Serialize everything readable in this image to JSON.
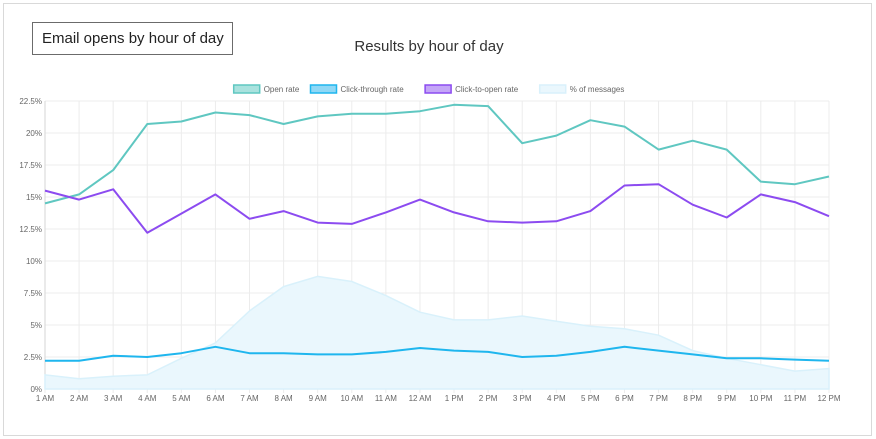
{
  "label_box": "Email opens by hour of day",
  "chart_data": {
    "type": "line",
    "title": "Results by hour of day",
    "xlabel": "",
    "ylabel": "",
    "ylim": [
      0,
      22.5
    ],
    "yticks": [
      "0%",
      "2.5%",
      "5%",
      "7.5%",
      "10%",
      "12.5%",
      "15%",
      "17.5%",
      "20%",
      "22.5%"
    ],
    "grid": true,
    "legend": "top-center",
    "categories": [
      "1 AM",
      "2 AM",
      "3 AM",
      "4 AM",
      "5 AM",
      "6 AM",
      "7 AM",
      "8 AM",
      "9 AM",
      "10 AM",
      "11 AM",
      "12 AM",
      "1 PM",
      "2 PM",
      "3 PM",
      "4 PM",
      "5 PM",
      "6 PM",
      "7 PM",
      "8 PM",
      "9 PM",
      "10 PM",
      "11 PM",
      "12 PM"
    ],
    "series": [
      {
        "name": "Open rate",
        "color": "#5fc7c1",
        "fill": "#a9e2de",
        "type": "line",
        "values": [
          14.5,
          15.2,
          17.1,
          20.7,
          20.9,
          21.6,
          21.4,
          20.7,
          21.3,
          21.5,
          21.5,
          21.7,
          22.2,
          22.1,
          19.2,
          19.8,
          21.0,
          20.5,
          18.7,
          19.4,
          18.7,
          16.2,
          16.0,
          16.6
        ]
      },
      {
        "name": "Click-through rate",
        "color": "#1fb6ee",
        "fill": "#8fd8f6",
        "type": "line",
        "values": [
          2.2,
          2.2,
          2.6,
          2.5,
          2.8,
          3.3,
          2.8,
          2.8,
          2.7,
          2.7,
          2.9,
          3.2,
          3.0,
          2.9,
          2.5,
          2.6,
          2.9,
          3.3,
          3.0,
          2.7,
          2.4,
          2.4,
          2.3,
          2.2
        ]
      },
      {
        "name": "Click-to-open rate",
        "color": "#8c4bf0",
        "fill": "#c4a6f7",
        "type": "line",
        "values": [
          15.5,
          14.8,
          15.6,
          12.2,
          13.7,
          15.2,
          13.3,
          13.9,
          13.0,
          12.9,
          13.8,
          14.8,
          13.8,
          13.1,
          13.0,
          13.1,
          13.9,
          15.9,
          16.0,
          14.4,
          13.4,
          15.2,
          14.6,
          13.5
        ]
      },
      {
        "name": "% of messages",
        "color": "#d9f1fb",
        "fill": "#eaf7fd",
        "type": "area",
        "values": [
          1.1,
          0.8,
          1.0,
          1.1,
          2.4,
          3.6,
          6.1,
          8.0,
          8.8,
          8.4,
          7.3,
          6.0,
          5.4,
          5.4,
          5.7,
          5.3,
          4.9,
          4.7,
          4.2,
          3.0,
          2.4,
          1.9,
          1.4,
          1.6
        ]
      }
    ]
  }
}
